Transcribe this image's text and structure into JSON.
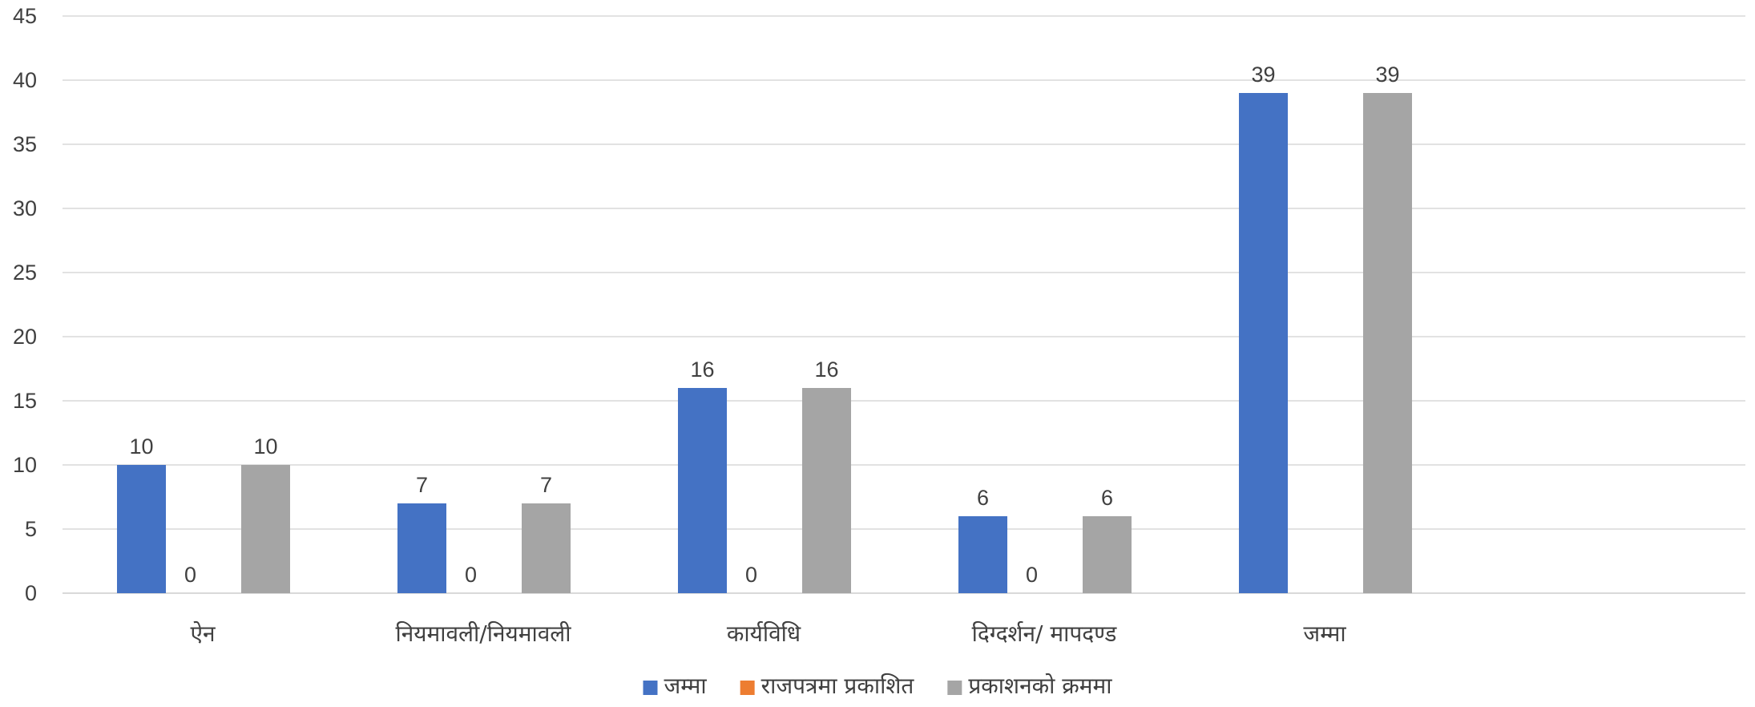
{
  "chart_data": {
    "type": "bar",
    "categories": [
      "ऐन",
      "नियमावली/नियमावली",
      "कार्यविधि",
      "दिग्दर्शन/  मापदण्ड",
      "जम्मा"
    ],
    "series": [
      {
        "name": "जम्मा",
        "color": "#4472c4",
        "values": [
          10,
          7,
          16,
          6,
          39
        ]
      },
      {
        "name": "राजपत्रमा  प्रकाशित",
        "color": "#ed7d31",
        "values": [
          0,
          0,
          0,
          0,
          null
        ]
      },
      {
        "name": "प्रकाशनको  क्रममा",
        "color": "#a5a5a5",
        "values": [
          10,
          7,
          16,
          6,
          39
        ]
      }
    ],
    "ylim": [
      0,
      45
    ],
    "yticks": [
      0,
      5,
      10,
      15,
      20,
      25,
      30,
      35,
      40,
      45
    ],
    "grid": true,
    "legend_position": "bottom",
    "title": "",
    "xlabel": "",
    "ylabel": ""
  }
}
